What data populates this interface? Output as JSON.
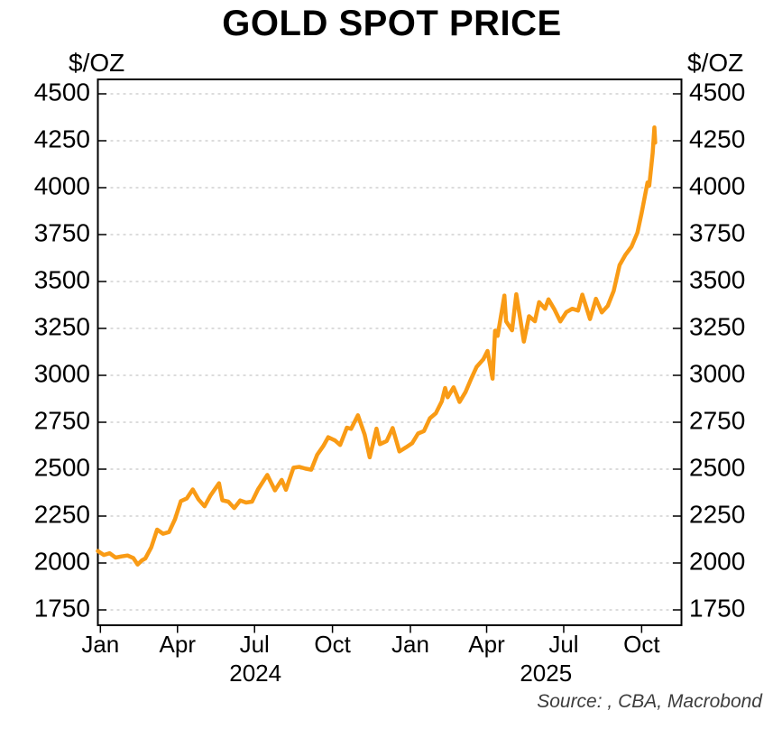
{
  "title": "GOLD SPOT PRICE",
  "unit_label_left": "$/OZ",
  "unit_label_right": "$/OZ",
  "source_text": "Source: , CBA, Macrobond",
  "colors": {
    "line": "#F99B15",
    "grid": "#C8C8C8",
    "frame": "#000000",
    "tick": "#000000",
    "text": "#000000",
    "source_text": "#3D3D3D"
  },
  "chart_data": {
    "type": "line",
    "title": "GOLD SPOT PRICE",
    "ylabel": "$/OZ",
    "grid": "horizontal-dashed",
    "legend": "none",
    "y_ticks": [
      1750,
      2000,
      2250,
      2500,
      2750,
      3000,
      3250,
      3500,
      3750,
      4000,
      4250,
      4500
    ],
    "ylim": [
      1665,
      4580
    ],
    "x_domain": [
      "2023-12-29",
      "2025-11-17"
    ],
    "x_ticks": [
      {
        "date": "2024-01-01",
        "label": "Jan"
      },
      {
        "date": "2024-04-01",
        "label": "Apr"
      },
      {
        "date": "2024-07-01",
        "label": "Jul"
      },
      {
        "date": "2024-10-01",
        "label": "Oct"
      },
      {
        "date": "2025-01-01",
        "label": "Jan"
      },
      {
        "date": "2025-04-01",
        "label": "Apr"
      },
      {
        "date": "2025-07-01",
        "label": "Jul"
      },
      {
        "date": "2025-10-01",
        "label": "Oct"
      }
    ],
    "year_labels": [
      {
        "label": "2024",
        "from": "2024-01-01",
        "to": "2025-01-01"
      },
      {
        "label": "2025",
        "from": "2025-01-01",
        "to": "2025-11-17"
      }
    ],
    "series": [
      {
        "name": "Gold spot price ($/oz)",
        "points": [
          [
            "2023-12-29",
            2064
          ],
          [
            "2024-01-05",
            2043
          ],
          [
            "2024-01-12",
            2052
          ],
          [
            "2024-01-19",
            2029
          ],
          [
            "2024-01-26",
            2035
          ],
          [
            "2024-02-02",
            2040
          ],
          [
            "2024-02-09",
            2026
          ],
          [
            "2024-02-14",
            1992
          ],
          [
            "2024-02-19",
            2014
          ],
          [
            "2024-02-23",
            2024
          ],
          [
            "2024-03-01",
            2083
          ],
          [
            "2024-03-08",
            2178
          ],
          [
            "2024-03-15",
            2156
          ],
          [
            "2024-03-22",
            2165
          ],
          [
            "2024-03-29",
            2233
          ],
          [
            "2024-04-05",
            2330
          ],
          [
            "2024-04-12",
            2344
          ],
          [
            "2024-04-19",
            2392
          ],
          [
            "2024-04-26",
            2338
          ],
          [
            "2024-05-03",
            2302
          ],
          [
            "2024-05-10",
            2360
          ],
          [
            "2024-05-20",
            2425
          ],
          [
            "2024-05-24",
            2334
          ],
          [
            "2024-05-31",
            2327
          ],
          [
            "2024-06-07",
            2293
          ],
          [
            "2024-06-14",
            2333
          ],
          [
            "2024-06-21",
            2322
          ],
          [
            "2024-06-28",
            2327
          ],
          [
            "2024-07-05",
            2392
          ],
          [
            "2024-07-16",
            2469
          ],
          [
            "2024-07-25",
            2387
          ],
          [
            "2024-08-02",
            2443
          ],
          [
            "2024-08-07",
            2390
          ],
          [
            "2024-08-16",
            2508
          ],
          [
            "2024-08-23",
            2512
          ],
          [
            "2024-08-30",
            2503
          ],
          [
            "2024-09-06",
            2497
          ],
          [
            "2024-09-13",
            2577
          ],
          [
            "2024-09-20",
            2622
          ],
          [
            "2024-09-26",
            2670
          ],
          [
            "2024-10-04",
            2653
          ],
          [
            "2024-10-10",
            2629
          ],
          [
            "2024-10-18",
            2721
          ],
          [
            "2024-10-23",
            2715
          ],
          [
            "2024-10-31",
            2787
          ],
          [
            "2024-11-08",
            2684
          ],
          [
            "2024-11-14",
            2563
          ],
          [
            "2024-11-22",
            2716
          ],
          [
            "2024-11-26",
            2633
          ],
          [
            "2024-12-04",
            2650
          ],
          [
            "2024-12-11",
            2719
          ],
          [
            "2024-12-19",
            2594
          ],
          [
            "2024-12-27",
            2617
          ],
          [
            "2025-01-03",
            2638
          ],
          [
            "2025-01-10",
            2690
          ],
          [
            "2025-01-17",
            2703
          ],
          [
            "2025-01-24",
            2771
          ],
          [
            "2025-01-31",
            2798
          ],
          [
            "2025-02-07",
            2861
          ],
          [
            "2025-02-11",
            2932
          ],
          [
            "2025-02-14",
            2883
          ],
          [
            "2025-02-21",
            2936
          ],
          [
            "2025-02-28",
            2858
          ],
          [
            "2025-03-07",
            2910
          ],
          [
            "2025-03-14",
            2984
          ],
          [
            "2025-03-20",
            3044
          ],
          [
            "2025-03-28",
            3085
          ],
          [
            "2025-04-02",
            3130
          ],
          [
            "2025-04-08",
            2982
          ],
          [
            "2025-04-11",
            3238
          ],
          [
            "2025-04-14",
            3210
          ],
          [
            "2025-04-22",
            3425
          ],
          [
            "2025-04-24",
            3288
          ],
          [
            "2025-05-01",
            3240
          ],
          [
            "2025-05-06",
            3432
          ],
          [
            "2025-05-15",
            3180
          ],
          [
            "2025-05-21",
            3315
          ],
          [
            "2025-05-28",
            3288
          ],
          [
            "2025-06-02",
            3390
          ],
          [
            "2025-06-09",
            3355
          ],
          [
            "2025-06-13",
            3405
          ],
          [
            "2025-06-20",
            3352
          ],
          [
            "2025-06-27",
            3287
          ],
          [
            "2025-07-04",
            3336
          ],
          [
            "2025-07-11",
            3355
          ],
          [
            "2025-07-18",
            3345
          ],
          [
            "2025-07-23",
            3430
          ],
          [
            "2025-08-01",
            3300
          ],
          [
            "2025-08-08",
            3408
          ],
          [
            "2025-08-15",
            3335
          ],
          [
            "2025-08-22",
            3370
          ],
          [
            "2025-08-29",
            3450
          ],
          [
            "2025-09-05",
            3587
          ],
          [
            "2025-09-12",
            3643
          ],
          [
            "2025-09-19",
            3685
          ],
          [
            "2025-09-26",
            3760
          ],
          [
            "2025-10-01",
            3866
          ],
          [
            "2025-10-08",
            4028
          ],
          [
            "2025-10-10",
            4010
          ],
          [
            "2025-10-14",
            4185
          ],
          [
            "2025-10-16",
            4321
          ],
          [
            "2025-10-17",
            4240
          ]
        ]
      }
    ]
  }
}
